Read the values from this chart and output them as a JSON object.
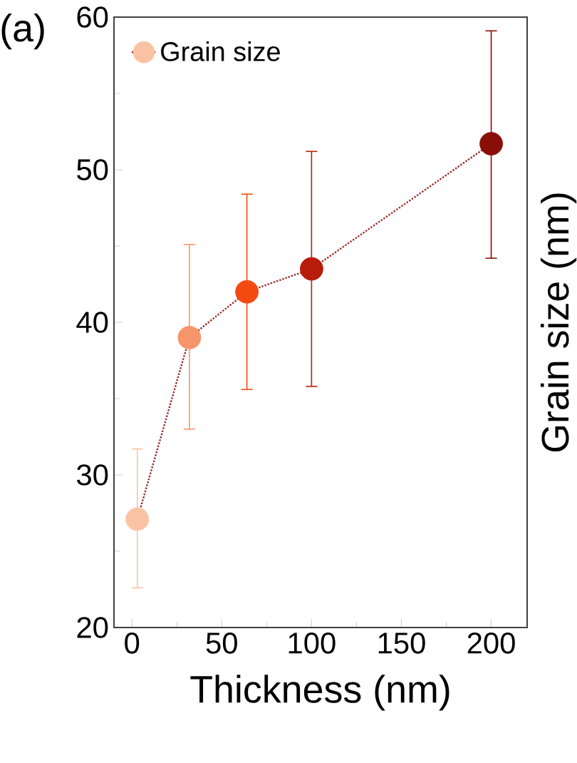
{
  "chart_data": {
    "type": "line",
    "xlabel": "Thickness (nm)",
    "ylabel": "Grain size (nm)",
    "annotations": [
      "(a)"
    ],
    "x": [
      3,
      32,
      64,
      100,
      200
    ],
    "xlim": [
      -10,
      220
    ],
    "ylim": [
      20,
      60
    ],
    "xticks": [
      0,
      50,
      100,
      150,
      200
    ],
    "yticks": [
      20,
      30,
      40,
      50,
      60
    ],
    "legend": "top left",
    "marker": "circle",
    "line_style": "dotted",
    "series": [
      {
        "name": "Grain size",
        "color": "#9b2a2a",
        "colors": [
          "#f9c3a3",
          "#f7956a",
          "#f24a10",
          "#b81c0a",
          "#8a0e08"
        ],
        "values": [
          27.1,
          39.0,
          42.0,
          43.5,
          51.7
        ],
        "errors": [
          [
            22.6,
            31.7
          ],
          [
            33.0,
            45.1
          ],
          [
            35.6,
            48.4
          ],
          [
            35.8,
            51.2
          ],
          [
            44.2,
            59.1
          ]
        ]
      }
    ]
  }
}
